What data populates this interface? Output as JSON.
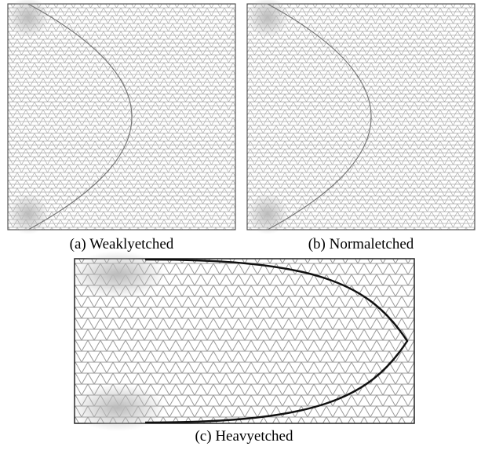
{
  "figure": {
    "panels": [
      {
        "caption": "(a) Weaklyetched"
      },
      {
        "caption": "(b) Normaletched"
      },
      {
        "caption": "(c) Heavyetched"
      }
    ]
  }
}
